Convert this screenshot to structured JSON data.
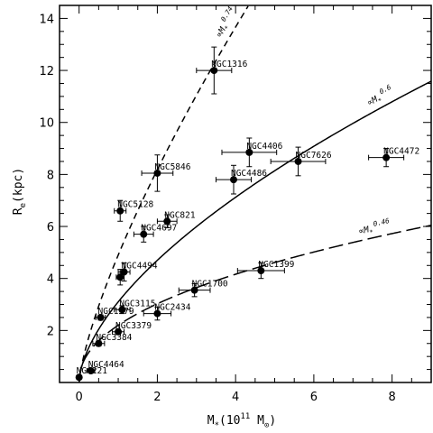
{
  "chart_data": {
    "type": "scatter",
    "xlabel": {
      "main": "M",
      "sub": "*",
      "tail": "(10",
      "sup": "11",
      "after": " M",
      "sub2": "⊙",
      "close": ")"
    },
    "ylabel": {
      "main": "R",
      "sub": "e",
      "tail": "(kpc)"
    },
    "xlim": [
      -0.5,
      9.0
    ],
    "ylim": [
      0.0,
      14.5
    ],
    "x_ticks": [
      0,
      2,
      4,
      6,
      8
    ],
    "y_ticks": [
      2,
      4,
      6,
      8,
      10,
      12,
      14
    ],
    "grid": false,
    "legend": "none",
    "points": [
      {
        "name": "NGC221",
        "x": 0.0,
        "y": 0.2,
        "xerr": 0.0,
        "yerr": 0.0
      },
      {
        "name": "NGC4464",
        "x": 0.3,
        "y": 0.45,
        "xerr": 0.1,
        "yerr": 0.05
      },
      {
        "name": "NGC3384",
        "x": 0.5,
        "y": 1.5,
        "xerr": 0.15,
        "yerr": 0.1
      },
      {
        "name": "NGC3379",
        "x": 1.0,
        "y": 1.95,
        "xerr": 0.15,
        "yerr": 0.1
      },
      {
        "name": "NGC1379",
        "x": 0.55,
        "y": 2.5,
        "xerr": 0.12,
        "yerr": 0.1
      },
      {
        "name": "NGC3115",
        "x": 1.1,
        "y": 2.8,
        "xerr": 0.2,
        "yerr": 0.15
      },
      {
        "name": "NGC2434",
        "x": 2.0,
        "y": 2.65,
        "xerr": 0.35,
        "yerr": 0.25
      },
      {
        "name": "NGC1700",
        "x": 2.95,
        "y": 3.55,
        "xerr": 0.4,
        "yerr": 0.25
      },
      {
        "name": "NGC1399",
        "x": 4.65,
        "y": 4.3,
        "xerr": 0.6,
        "yerr": 0.3
      },
      {
        "name": "NGC4494",
        "x": 1.15,
        "y": 4.25,
        "xerr": 0.15,
        "yerr": 0.35
      },
      {
        "name": "",
        "x": 1.05,
        "y": 4.05,
        "xerr": 0.1,
        "yerr": 0.3
      },
      {
        "name": "NGC4697",
        "x": 1.65,
        "y": 5.7,
        "xerr": 0.25,
        "yerr": 0.3
      },
      {
        "name": "NGC821",
        "x": 2.25,
        "y": 6.2,
        "xerr": 0.25,
        "yerr": 0.25
      },
      {
        "name": "NGC5128",
        "x": 1.05,
        "y": 6.6,
        "xerr": 0.15,
        "yerr": 0.4
      },
      {
        "name": "NGC5846",
        "x": 2.0,
        "y": 8.05,
        "xerr": 0.4,
        "yerr": 0.7
      },
      {
        "name": "NGC4486",
        "x": 3.95,
        "y": 7.8,
        "xerr": 0.45,
        "yerr": 0.55
      },
      {
        "name": "NGC4406",
        "x": 4.35,
        "y": 8.85,
        "xerr": 0.7,
        "yerr": 0.55
      },
      {
        "name": "NGC7626",
        "x": 5.6,
        "y": 8.5,
        "xerr": 0.7,
        "yerr": 0.55
      },
      {
        "name": "NGC4472",
        "x": 7.85,
        "y": 8.65,
        "xerr": 0.45,
        "yerr": 0.35
      },
      {
        "name": "NGC1316",
        "x": 3.45,
        "y": 12.0,
        "xerr": 0.45,
        "yerr": 0.9
      }
    ],
    "curves": [
      {
        "label_main": "∝M",
        "label_sub": "*",
        "label_sup": "0.74",
        "coef": 4.9,
        "exponent": 0.74,
        "dash": "short"
      },
      {
        "label_main": "∝M",
        "label_sub": "*",
        "label_sup": "0.6",
        "coef": 3.1,
        "exponent": 0.6,
        "dash": "solid"
      },
      {
        "label_main": "∝M",
        "label_sub": "*",
        "label_sup": "0.46",
        "coef": 2.2,
        "exponent": 0.46,
        "dash": "long"
      }
    ]
  }
}
